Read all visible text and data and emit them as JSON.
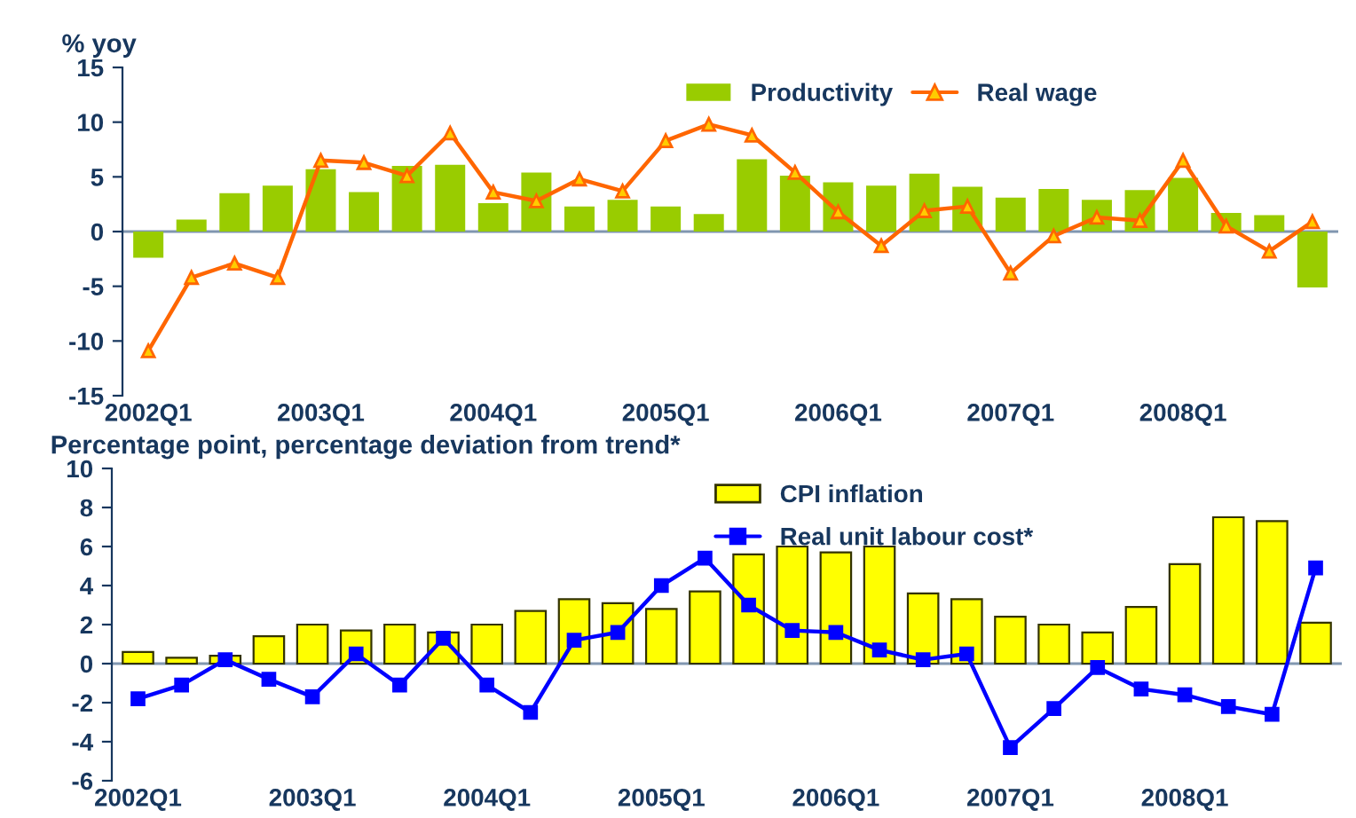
{
  "chart_data": [
    {
      "type": "bar",
      "ylabel": "% yoy",
      "categories": [
        "2002Q1",
        null,
        null,
        null,
        "2003Q1",
        null,
        null,
        null,
        "2004Q1",
        null,
        null,
        null,
        "2005Q1",
        null,
        null,
        null,
        "2006Q1",
        null,
        null,
        null,
        "2007Q1",
        null,
        null,
        null,
        "2008Q1",
        null,
        null,
        null
      ],
      "series": [
        {
          "name": "Productivity",
          "color": "#99cc00",
          "values": [
            -2.4,
            1.1,
            3.5,
            4.2,
            5.7,
            3.6,
            6.0,
            6.1,
            2.6,
            5.4,
            2.3,
            2.9,
            2.3,
            1.6,
            6.6,
            5.1,
            4.5,
            4.2,
            5.3,
            4.1,
            3.1,
            3.9,
            2.9,
            3.8,
            4.9,
            1.7,
            1.5,
            -5.1
          ]
        },
        {
          "name": "Real wage",
          "type": "line",
          "color": "#ff6600",
          "marker": "triangle",
          "values": [
            -10.9,
            -4.2,
            -2.9,
            -4.2,
            6.5,
            6.3,
            5.1,
            9.0,
            3.6,
            2.8,
            4.8,
            3.7,
            8.3,
            9.8,
            8.8,
            5.4,
            1.8,
            -1.3,
            1.9,
            2.3,
            -3.8,
            -0.4,
            1.3,
            1.0,
            6.5,
            0.5,
            -1.8,
            0.9
          ]
        }
      ],
      "ylim": [
        -15,
        15
      ],
      "yticks": [
        -15,
        -10,
        -5,
        0,
        5,
        10,
        15
      ],
      "grid": false,
      "legend": "top right",
      "ref_lines": [
        {
          "axis": "y",
          "value": 0,
          "color": "#8096b0"
        }
      ]
    },
    {
      "type": "bar",
      "ylabel": "Percentage point, percentage deviation from trend*",
      "categories": [
        "2002Q1",
        null,
        null,
        null,
        "2003Q1",
        null,
        null,
        null,
        "2004Q1",
        null,
        null,
        null,
        "2005Q1",
        null,
        null,
        null,
        "2006Q1",
        null,
        null,
        null,
        "2007Q1",
        null,
        null,
        null,
        "2008Q1",
        null,
        null,
        null
      ],
      "series": [
        {
          "name": "CPI inflation",
          "color": "#ffff00",
          "values": [
            0.6,
            0.3,
            0.4,
            1.4,
            2.0,
            1.7,
            2.0,
            1.6,
            2.0,
            2.7,
            3.3,
            3.1,
            2.8,
            3.7,
            5.6,
            6.0,
            5.7,
            6.0,
            3.6,
            3.3,
            2.4,
            2.0,
            1.6,
            2.9,
            5.1,
            7.5,
            7.3,
            2.1
          ]
        },
        {
          "name": "Real unit labour cost*",
          "type": "line",
          "color": "#0000ff",
          "marker": "square",
          "values": [
            -1.8,
            -1.1,
            0.2,
            -0.8,
            -1.7,
            0.5,
            -1.1,
            1.3,
            -1.1,
            -2.5,
            1.2,
            1.6,
            4.0,
            5.4,
            3.0,
            1.7,
            1.6,
            0.7,
            0.2,
            0.5,
            -4.3,
            -2.3,
            -0.2,
            -1.3,
            -1.6,
            -2.2,
            -2.6,
            4.9
          ]
        }
      ],
      "ylim": [
        -6,
        10
      ],
      "yticks": [
        -6,
        -4,
        -2,
        0,
        2,
        4,
        6,
        8,
        10
      ],
      "grid": false,
      "legend": "top",
      "ref_lines": [
        {
          "axis": "y",
          "value": 0,
          "color": "#8096b0"
        }
      ]
    }
  ]
}
